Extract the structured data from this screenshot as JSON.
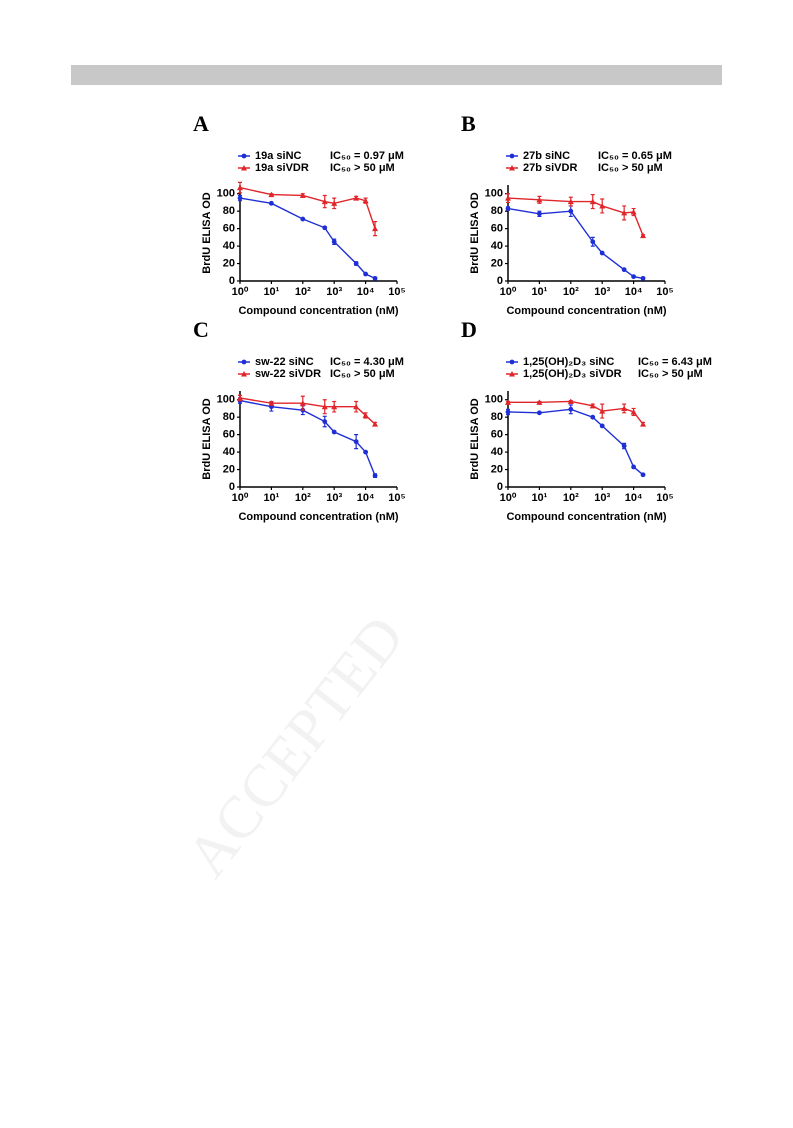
{
  "watermark": "ACCEPTED",
  "chart_data": [
    {
      "type": "line",
      "panel": "A",
      "xlabel": "Compound concentration (nM)",
      "ylabel": "BrdU ELISA OD",
      "log_x": true,
      "xlim": [
        1,
        100000
      ],
      "ylim": [
        0,
        110
      ],
      "xticks": [
        {
          "value": 1,
          "label": "10⁰"
        },
        {
          "value": 10,
          "label": "10¹"
        },
        {
          "value": 100,
          "label": "10²"
        },
        {
          "value": 1000,
          "label": "10³"
        },
        {
          "value": 10000,
          "label": "10⁴"
        },
        {
          "value": 100000,
          "label": "10⁵"
        }
      ],
      "yticks": [
        0,
        20,
        40,
        60,
        80,
        100
      ],
      "x": [
        1,
        10,
        100,
        500,
        1000,
        5000,
        10000,
        20000
      ],
      "series": [
        {
          "name": "19a siNC",
          "ic50": "IC₅₀ = 0.97 μM",
          "color": "#1f2fd6",
          "marker": "circle",
          "values": [
            95,
            89,
            71,
            61,
            45,
            20,
            8,
            3
          ],
          "errors": [
            3,
            1,
            1,
            1,
            3,
            2,
            1,
            1
          ]
        },
        {
          "name": "19a siVDR",
          "ic50": "IC₅₀ > 50 μM",
          "color": "#e0262b",
          "marker": "triangle",
          "values": [
            107,
            99,
            98,
            91,
            89,
            95,
            92,
            60
          ],
          "errors": [
            6,
            1,
            2,
            7,
            6,
            2,
            3,
            8
          ]
        }
      ]
    },
    {
      "type": "line",
      "panel": "B",
      "xlabel": "Compound concentration (nM)",
      "ylabel": "BrdU ELISA OD",
      "log_x": true,
      "xlim": [
        1,
        100000
      ],
      "ylim": [
        0,
        110
      ],
      "xticks": [
        {
          "value": 1,
          "label": "10⁰"
        },
        {
          "value": 10,
          "label": "10¹"
        },
        {
          "value": 100,
          "label": "10²"
        },
        {
          "value": 1000,
          "label": "10³"
        },
        {
          "value": 10000,
          "label": "10⁴"
        },
        {
          "value": 100000,
          "label": "10⁵"
        }
      ],
      "yticks": [
        0,
        20,
        40,
        60,
        80,
        100
      ],
      "x": [
        1,
        10,
        100,
        500,
        1000,
        5000,
        10000,
        20000
      ],
      "series": [
        {
          "name": "27b siNC",
          "ic50": "IC₅₀ = 0.65 μM",
          "color": "#1f2fd6",
          "marker": "circle",
          "values": [
            83,
            77,
            80,
            45,
            32,
            13,
            5,
            3
          ],
          "errors": [
            2,
            3,
            6,
            5,
            1,
            1,
            1,
            1
          ]
        },
        {
          "name": "27b siVDR",
          "ic50": "IC₅₀ > 50 μM",
          "color": "#e0262b",
          "marker": "triangle",
          "values": [
            95,
            93,
            91,
            91,
            86,
            78,
            79,
            52
          ],
          "errors": [
            5,
            4,
            5,
            8,
            8,
            8,
            4,
            1
          ]
        }
      ]
    },
    {
      "type": "line",
      "panel": "C",
      "xlabel": "Compound concentration (nM)",
      "ylabel": "BrdU ELISA OD",
      "log_x": true,
      "xlim": [
        1,
        100000
      ],
      "ylim": [
        0,
        110
      ],
      "xticks": [
        {
          "value": 1,
          "label": "10⁰"
        },
        {
          "value": 10,
          "label": "10¹"
        },
        {
          "value": 100,
          "label": "10²"
        },
        {
          "value": 1000,
          "label": "10³"
        },
        {
          "value": 10000,
          "label": "10⁴"
        },
        {
          "value": 100000,
          "label": "10⁵"
        }
      ],
      "yticks": [
        0,
        20,
        40,
        60,
        80,
        100
      ],
      "x": [
        1,
        10,
        100,
        500,
        1000,
        5000,
        10000,
        20000
      ],
      "series": [
        {
          "name": "sw-22 siNC",
          "ic50": "IC₅₀ = 4.30 μM",
          "color": "#1f2fd6",
          "marker": "circle",
          "values": [
            99,
            92,
            88,
            75,
            63,
            52,
            40,
            13
          ],
          "errors": [
            3,
            5,
            5,
            6,
            1,
            8,
            1,
            2
          ]
        },
        {
          "name": "sw-22 siVDR",
          "ic50": "IC₅₀ > 50 μM",
          "color": "#e0262b",
          "marker": "triangle",
          "values": [
            102,
            96,
            96,
            92,
            92,
            92,
            82,
            72
          ],
          "errors": [
            3,
            2,
            8,
            8,
            6,
            6,
            3,
            2
          ]
        }
      ]
    },
    {
      "type": "line",
      "panel": "D",
      "xlabel": "Compound concentration (nM)",
      "ylabel": "BrdU ELISA OD",
      "log_x": true,
      "xlim": [
        1,
        100000
      ],
      "ylim": [
        0,
        110
      ],
      "xticks": [
        {
          "value": 1,
          "label": "10⁰"
        },
        {
          "value": 10,
          "label": "10¹"
        },
        {
          "value": 100,
          "label": "10²"
        },
        {
          "value": 1000,
          "label": "10³"
        },
        {
          "value": 10000,
          "label": "10⁴"
        },
        {
          "value": 100000,
          "label": "10⁵"
        }
      ],
      "yticks": [
        0,
        20,
        40,
        60,
        80,
        100
      ],
      "x": [
        1,
        10,
        100,
        500,
        1000,
        5000,
        10000,
        20000
      ],
      "series": [
        {
          "name": "1,25(OH)₂D₃ siNC",
          "ic50": "IC₅₀ = 6.43 μM",
          "color": "#1f2fd6",
          "marker": "circle",
          "values": [
            86,
            85,
            89,
            80,
            70,
            47,
            23,
            14
          ],
          "errors": [
            3,
            1,
            5,
            1,
            1,
            3,
            1,
            1
          ]
        },
        {
          "name": "1,25(OH)₂D₃ siVDR",
          "ic50": "IC₅₀ > 50 μM",
          "color": "#e0262b",
          "marker": "triangle",
          "values": [
            97,
            97,
            98,
            93,
            87,
            90,
            86,
            72
          ],
          "errors": [
            1,
            1,
            1,
            2,
            8,
            5,
            4,
            2
          ]
        }
      ]
    }
  ]
}
